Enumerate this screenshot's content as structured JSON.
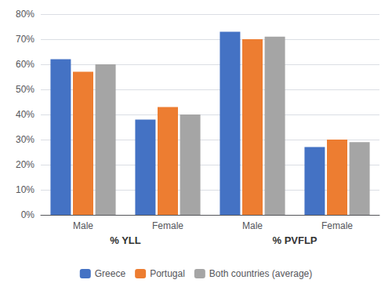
{
  "chart_data": {
    "type": "bar",
    "categories": [
      "Male",
      "Female",
      "Male",
      "Female"
    ],
    "annotations": [
      "% YLL",
      "% PVFLP"
    ],
    "series": [
      {
        "name": "Greece",
        "color": "#4472C4",
        "values": [
          0.62,
          0.38,
          0.73,
          0.27
        ]
      },
      {
        "name": "Portugal",
        "color": "#ED7D31",
        "values": [
          0.57,
          0.43,
          0.7,
          0.3
        ]
      },
      {
        "name": "Both countries (average)",
        "color": "#A5A5A5",
        "values": [
          0.6,
          0.4,
          0.71,
          0.29
        ]
      }
    ],
    "ylim": [
      0,
      0.8
    ],
    "yticks": [
      {
        "value": 0.0,
        "label": "0%"
      },
      {
        "value": 0.1,
        "label": "10%"
      },
      {
        "value": 0.2,
        "label": "20%"
      },
      {
        "value": 0.3,
        "label": "30%"
      },
      {
        "value": 0.4,
        "label": "40%"
      },
      {
        "value": 0.5,
        "label": "50%"
      },
      {
        "value": 0.6,
        "label": "60%"
      },
      {
        "value": 0.7,
        "label": "70%"
      },
      {
        "value": 0.8,
        "label": "80%"
      }
    ],
    "grid": true,
    "legend": "bottom"
  }
}
